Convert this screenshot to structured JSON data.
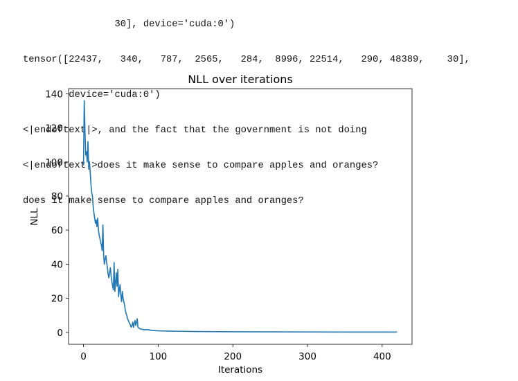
{
  "output_lines": [
    "                30], device='cuda:0')",
    "tensor([22437,   340,   787,  2565,   284,  8996, 22514,   290, 48389,    30],",
    "        device='cuda:0')",
    "<|endoftext|>, and the fact that the government is not doing",
    "<|endoftext|>does it make sense to compare apples and oranges?",
    "does it make sense to compare apples and oranges?"
  ],
  "chart_data": {
    "type": "line",
    "title": "NLL over iterations",
    "xlabel": "Iterations",
    "ylabel": "NLL",
    "xlim": [
      -20,
      440
    ],
    "ylim": [
      -7,
      143
    ],
    "xticks": [
      0,
      100,
      200,
      300,
      400
    ],
    "yticks": [
      0,
      20,
      40,
      60,
      80,
      100,
      120,
      140
    ],
    "grid": false,
    "color": "#1f77b4",
    "series": [
      {
        "x": [
          0,
          1,
          2,
          3,
          4,
          5,
          6,
          7,
          8,
          9,
          10,
          11,
          12,
          13,
          14,
          15,
          16,
          17,
          18,
          19,
          20,
          21,
          22,
          23,
          24,
          25,
          26,
          27,
          28,
          29,
          30,
          31,
          32,
          33,
          34,
          35,
          36,
          37,
          38,
          39,
          40,
          41,
          42,
          43,
          44,
          45,
          46,
          47,
          48,
          49,
          50,
          51,
          52,
          53,
          54,
          55,
          56,
          57,
          58,
          59,
          60,
          61,
          62,
          63,
          64,
          65,
          66,
          67,
          68,
          69,
          70,
          71,
          72,
          73,
          75,
          78,
          82,
          86,
          90,
          100,
          120,
          150,
          200,
          250,
          300,
          350,
          400,
          420
        ],
        "y": [
          98,
          136,
          118,
          104,
          106,
          100,
          112,
          96,
          100,
          94,
          87,
          82,
          80,
          74,
          70,
          67,
          64,
          66,
          62,
          67,
          60,
          57,
          55,
          53,
          51,
          48,
          63,
          45,
          40,
          43,
          45,
          41,
          38,
          34,
          32,
          35,
          38,
          33,
          30,
          27,
          25,
          41,
          24,
          29,
          35,
          27,
          37,
          21,
          25,
          28,
          22,
          18,
          24,
          20,
          18,
          16,
          13,
          11,
          10,
          8,
          7,
          6,
          5,
          4,
          3,
          4,
          6,
          3,
          5,
          7,
          4,
          6,
          8,
          3,
          2.2,
          1.8,
          1.5,
          1.6,
          1.2,
          0.9,
          0.7,
          0.5,
          0.35,
          0.3,
          0.25,
          0.2,
          0.2,
          0.2
        ]
      }
    ]
  }
}
